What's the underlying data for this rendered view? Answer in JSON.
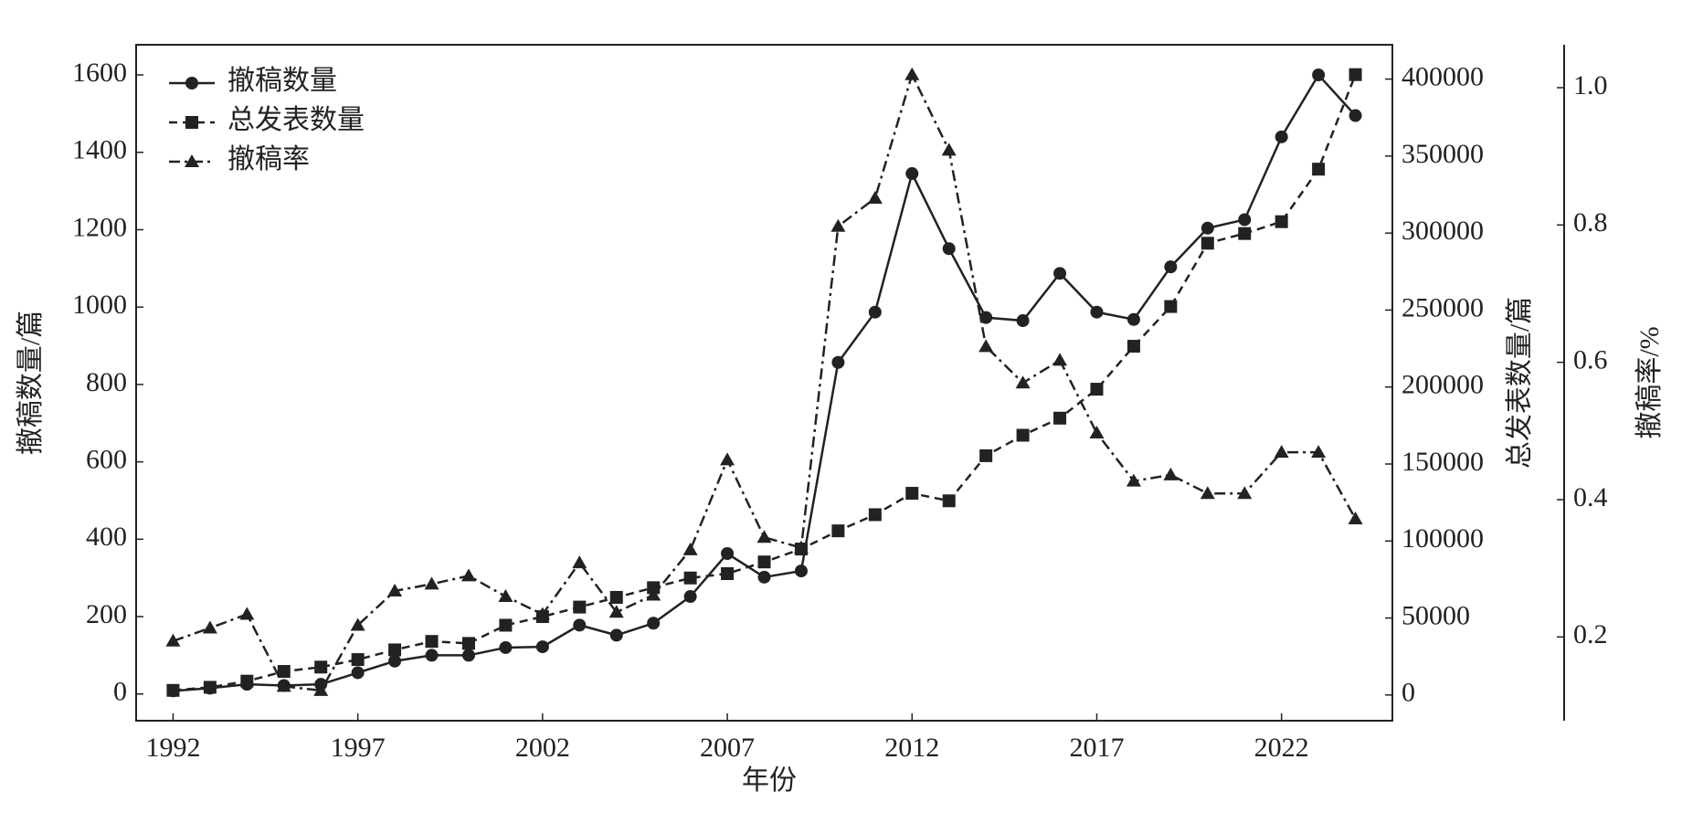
{
  "chart_data": {
    "type": "line",
    "x": [
      1992,
      1993,
      1994,
      1995,
      1996,
      1997,
      1998,
      1999,
      2000,
      2001,
      2002,
      2003,
      2004,
      2005,
      2006,
      2007,
      2008,
      2009,
      2010,
      2011,
      2012,
      2013,
      2014,
      2015,
      2016,
      2017,
      2018,
      2019,
      2020,
      2021,
      2022,
      2023,
      2024
    ],
    "xlabel": "年份",
    "ylabel": "撤稿数量/篇",
    "y2label": "总发表数量/篇",
    "y3label": "撤稿率/%",
    "xlim": [
      1991,
      2025
    ],
    "xticks": [
      1992,
      1997,
      2002,
      2007,
      2012,
      2017,
      2022
    ],
    "ylim": [
      -69,
      1678
    ],
    "yticks": [
      0,
      200,
      400,
      600,
      800,
      1000,
      1200,
      1400,
      1600
    ],
    "y2lim": [
      -16700,
      422300
    ],
    "y2ticks": [
      0,
      50000,
      100000,
      150000,
      200000,
      250000,
      300000,
      350000,
      400000
    ],
    "y3lim": [
      0.078,
      1.0625
    ],
    "y3ticks": [
      0.2,
      0.4,
      0.6,
      0.8,
      {
        "value": 1,
        "label": "1.0"
      }
    ],
    "legend": "upper left",
    "series": [
      {
        "name": "撤稿数量",
        "color": "#222222",
        "linestyle": "solid",
        "marker": "circle",
        "axis": "y",
        "values": [
          8,
          15,
          25,
          22,
          25,
          55,
          85,
          100,
          100,
          120,
          122,
          178,
          152,
          183,
          252,
          363,
          302,
          318,
          857,
          987,
          1345,
          1151,
          973,
          965,
          1087,
          987,
          968,
          1104,
          1204,
          1226,
          1440,
          1600,
          1495
        ]
      },
      {
        "name": "总发表数量",
        "color": "#222222",
        "linestyle": "dashed",
        "marker": "square",
        "axis": "y2",
        "values": [
          3000,
          5000,
          9000,
          15300,
          18100,
          23000,
          29300,
          34800,
          33500,
          45300,
          50900,
          57100,
          63400,
          69700,
          76000,
          78800,
          86400,
          94800,
          106600,
          117100,
          131000,
          126100,
          155400,
          168700,
          179800,
          198600,
          226500,
          252300,
          293400,
          299700,
          307400,
          341500,
          402900
        ]
      },
      {
        "name": "撤稿率",
        "color": "#222222",
        "linestyle": "dashdot",
        "marker": "triangle",
        "axis": "y3",
        "values": [
          0.194,
          0.213,
          0.233,
          0.128,
          0.122,
          0.217,
          0.267,
          0.277,
          0.289,
          0.259,
          0.233,
          0.308,
          0.236,
          0.261,
          0.327,
          0.458,
          0.345,
          0.33,
          0.798,
          0.839,
          1.019,
          0.909,
          0.623,
          0.57,
          0.603,
          0.497,
          0.427,
          0.436,
          0.409,
          0.409,
          0.469,
          0.469,
          0.372
        ]
      }
    ]
  }
}
